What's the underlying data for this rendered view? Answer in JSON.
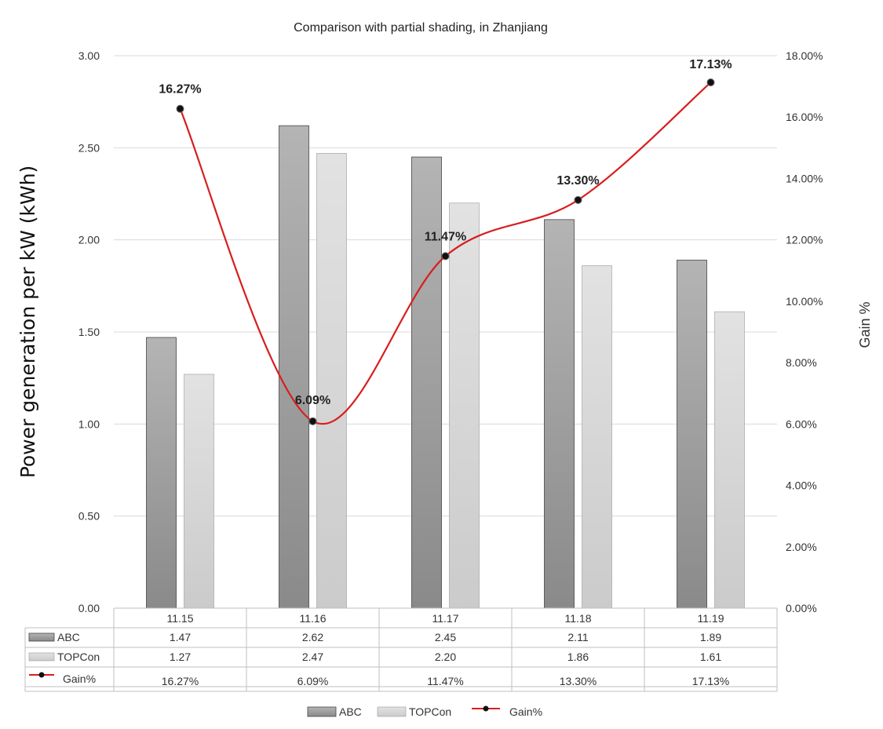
{
  "chart_data": {
    "type": "bar",
    "title": "Comparison with partial shading, in Zhanjiang",
    "ylabel": "Power generation per kW (kWh)",
    "y2label": "Gain %",
    "categories": [
      "11.15",
      "11.16",
      "11.17",
      "11.18",
      "11.19"
    ],
    "ylim": [
      0,
      3
    ],
    "y_ticks": [
      "0.00",
      "0.50",
      "1.00",
      "1.50",
      "2.00",
      "2.50",
      "3.00"
    ],
    "y2lim": [
      0,
      18
    ],
    "y2_ticks": [
      "0.00%",
      "2.00%",
      "4.00%",
      "6.00%",
      "8.00%",
      "10.00%",
      "12.00%",
      "14.00%",
      "16.00%",
      "18.00%"
    ],
    "series": [
      {
        "name": "ABC",
        "type": "bar",
        "axis": "left",
        "values": [
          1.47,
          2.62,
          2.45,
          2.11,
          1.89
        ],
        "labels": [
          "1.47",
          "2.62",
          "2.45",
          "2.11",
          "1.89"
        ]
      },
      {
        "name": "TOPCon",
        "type": "bar",
        "axis": "left",
        "values": [
          1.27,
          2.47,
          2.2,
          1.86,
          1.61
        ],
        "labels": [
          "1.27",
          "2.47",
          "2.20",
          "1.86",
          "1.61"
        ]
      },
      {
        "name": "Gain%",
        "type": "line",
        "axis": "right",
        "values": [
          16.27,
          6.09,
          11.47,
          13.3,
          17.13
        ],
        "labels": [
          "16.27%",
          "6.09%",
          "11.47%",
          "13.30%",
          "17.13%"
        ]
      }
    ],
    "grid": true,
    "data_table": true,
    "legend": "bottom"
  },
  "colors": {
    "abc_top": "#b2b2b2",
    "abc_bottom": "#8c8c8c",
    "topcon_top": "#e0e0e0",
    "topcon_bottom": "#cccccc",
    "gain_line": "#d81e1e",
    "marker": "#111111",
    "grid": "#d9d9d9"
  }
}
